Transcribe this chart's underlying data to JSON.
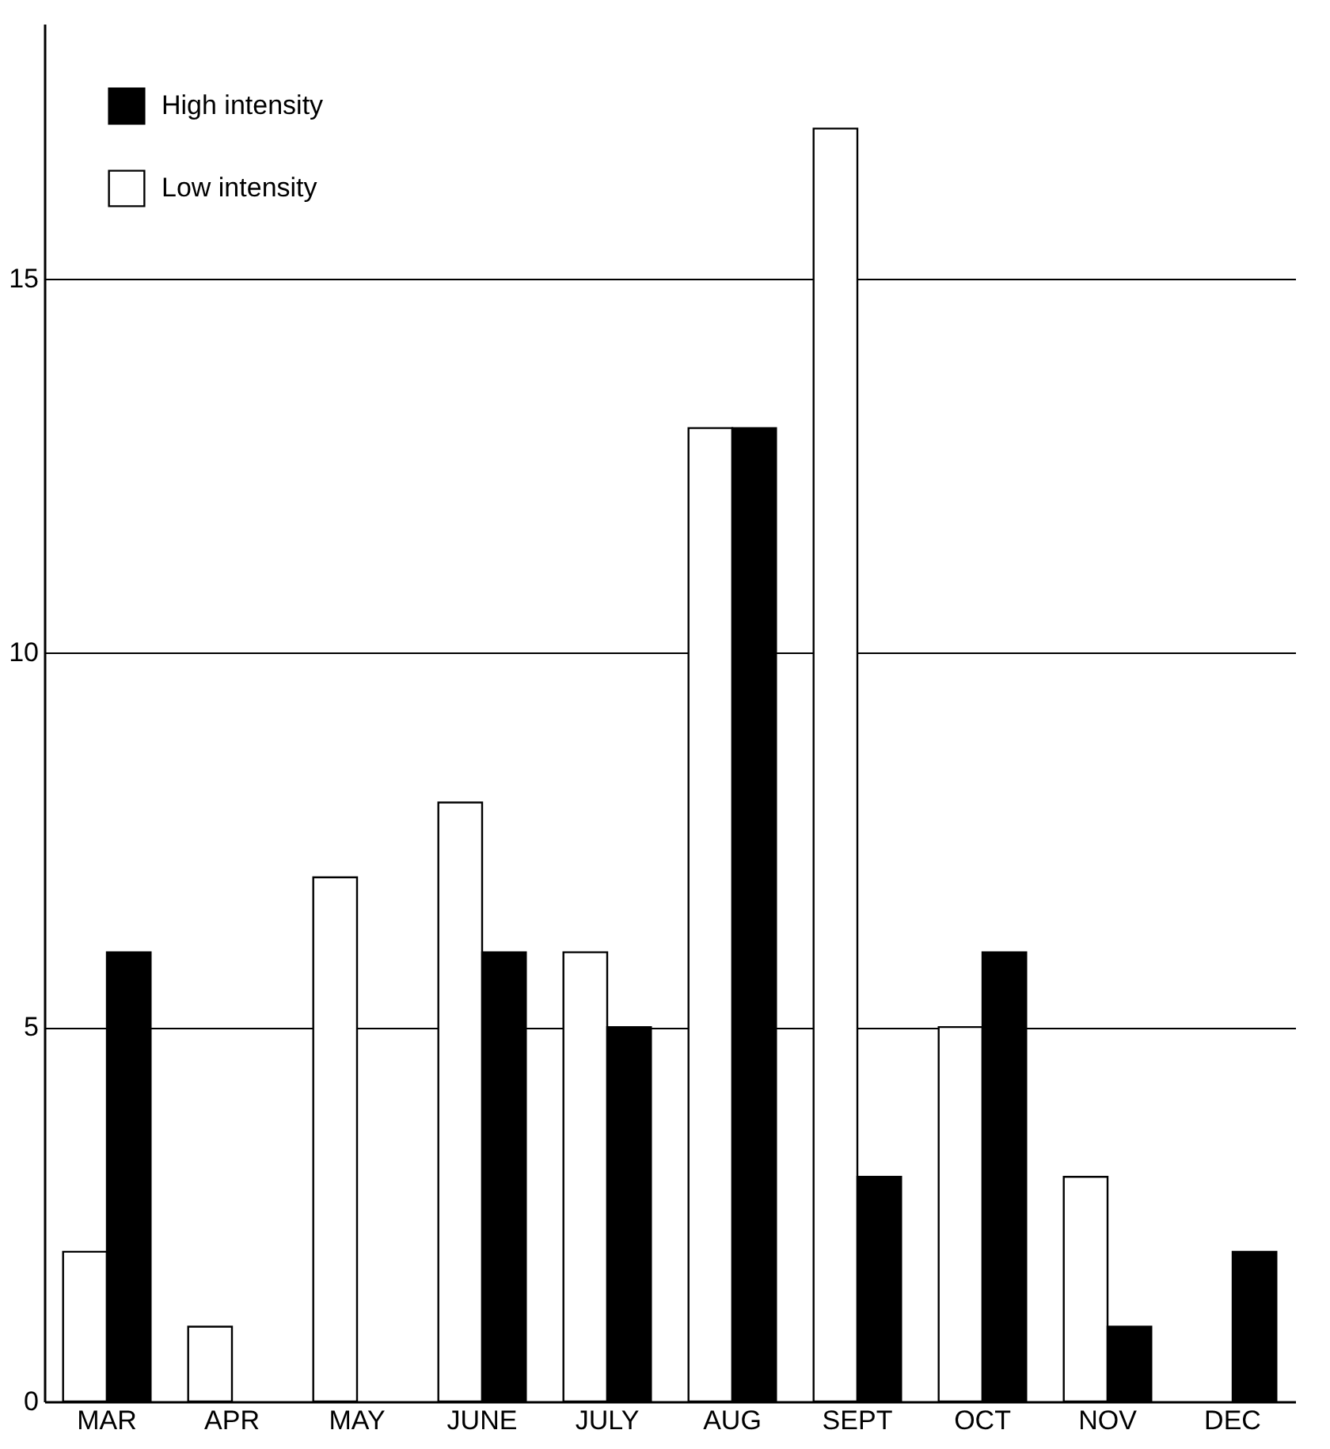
{
  "chart_data": {
    "type": "bar",
    "categories": [
      "MAR",
      "APR",
      "MAY",
      "JUNE",
      "JULY",
      "AUG",
      "SEPT",
      "OCT",
      "NOV",
      "DEC"
    ],
    "series": [
      {
        "name": "Low intensity",
        "color": "#ffffff",
        "values": [
          2,
          1,
          7,
          8,
          6,
          13,
          17,
          5,
          3,
          null
        ]
      },
      {
        "name": "High intensity",
        "color": "#000000",
        "values": [
          6,
          null,
          null,
          6,
          5,
          13,
          3,
          6,
          1,
          2
        ]
      }
    ],
    "ylim": [
      0,
      18.4
    ],
    "yticks": [
      0,
      5,
      10,
      15
    ],
    "grid": "y",
    "legend": "top left"
  }
}
